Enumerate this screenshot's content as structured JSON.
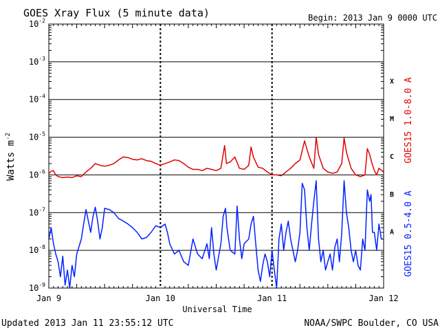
{
  "chart_data": {
    "type": "line",
    "title": "GOES Xray Flux (5 minute data)",
    "begin_label": "Begin:  2013 Jan 9 0000 UTC",
    "xlabel": "Universal Time",
    "ylabel": "Watts m",
    "ylabel_exponent": "-2",
    "yscale": "log",
    "ylim": [
      1e-09,
      0.01
    ],
    "xlim_hours": [
      0,
      72
    ],
    "y_ticks": [
      {
        "base": "10",
        "exp": "-2",
        "value": 0.01
      },
      {
        "base": "10",
        "exp": "-3",
        "value": 0.001
      },
      {
        "base": "10",
        "exp": "-4",
        "value": 0.0001
      },
      {
        "base": "10",
        "exp": "-5",
        "value": 1e-05
      },
      {
        "base": "10",
        "exp": "-6",
        "value": 1e-06
      },
      {
        "base": "10",
        "exp": "-7",
        "value": 1e-07
      },
      {
        "base": "10",
        "exp": "-8",
        "value": 1e-08
      },
      {
        "base": "10",
        "exp": "-9",
        "value": 1e-09
      }
    ],
    "x_ticks": [
      {
        "label": "Jan 9",
        "hour": 0
      },
      {
        "label": "Jan 10",
        "hour": 24
      },
      {
        "label": "Jan 11",
        "hour": 48
      },
      {
        "label": "Jan 12",
        "hour": 72
      }
    ],
    "flare_classes": [
      {
        "label": "X",
        "value": 0.000316
      },
      {
        "label": "M",
        "value": 3.16e-05
      },
      {
        "label": "C",
        "value": 3.16e-06
      },
      {
        "label": "B",
        "value": 3.16e-07
      },
      {
        "label": "A",
        "value": 3.16e-08
      }
    ],
    "series": [
      {
        "name": "GOES15 1.0-8.0 A",
        "color": "#e00000",
        "points": [
          [
            0,
            1.1e-06
          ],
          [
            0.5,
            1.25e-06
          ],
          [
            1,
            1.3e-06
          ],
          [
            1.5,
            1e-06
          ],
          [
            2,
            9e-07
          ],
          [
            3,
            8.5e-07
          ],
          [
            4,
            8.8e-07
          ],
          [
            5,
            8.5e-07
          ],
          [
            6,
            9.5e-07
          ],
          [
            7,
            9e-07
          ],
          [
            8,
            1.2e-06
          ],
          [
            9,
            1.5e-06
          ],
          [
            10,
            2e-06
          ],
          [
            11,
            1.8e-06
          ],
          [
            12,
            1.7e-06
          ],
          [
            13,
            1.8e-06
          ],
          [
            14,
            2e-06
          ],
          [
            15,
            2.5e-06
          ],
          [
            16,
            3e-06
          ],
          [
            17,
            2.9e-06
          ],
          [
            18,
            2.6e-06
          ],
          [
            19,
            2.5e-06
          ],
          [
            20,
            2.7e-06
          ],
          [
            21,
            2.4e-06
          ],
          [
            22,
            2.3e-06
          ],
          [
            23,
            2e-06
          ],
          [
            24,
            1.8e-06
          ],
          [
            25,
            2e-06
          ],
          [
            26,
            2.2e-06
          ],
          [
            27,
            2.5e-06
          ],
          [
            28,
            2.4e-06
          ],
          [
            29,
            2e-06
          ],
          [
            30,
            1.6e-06
          ],
          [
            31,
            1.4e-06
          ],
          [
            32,
            1.4e-06
          ],
          [
            33,
            1.3e-06
          ],
          [
            34,
            1.5e-06
          ],
          [
            35,
            1.4e-06
          ],
          [
            36,
            1.3e-06
          ],
          [
            37,
            1.5e-06
          ],
          [
            37.8,
            6e-06
          ],
          [
            38.2,
            2e-06
          ],
          [
            39,
            2.2e-06
          ],
          [
            40,
            3e-06
          ],
          [
            41,
            1.5e-06
          ],
          [
            42,
            1.4e-06
          ],
          [
            43,
            1.8e-06
          ],
          [
            43.5,
            5.5e-06
          ],
          [
            44,
            3e-06
          ],
          [
            45,
            1.6e-06
          ],
          [
            46,
            1.5e-06
          ],
          [
            47,
            1.2e-06
          ],
          [
            48,
            1e-06
          ],
          [
            49,
            1e-06
          ],
          [
            50,
            9.5e-07
          ],
          [
            51,
            1.2e-06
          ],
          [
            52,
            1.5e-06
          ],
          [
            53,
            2e-06
          ],
          [
            54,
            2.5e-06
          ],
          [
            55,
            8e-06
          ],
          [
            56,
            3e-06
          ],
          [
            57,
            1.5e-06
          ],
          [
            57.5,
            1e-05
          ],
          [
            58,
            3.5e-06
          ],
          [
            59,
            1.5e-06
          ],
          [
            60,
            1.2e-06
          ],
          [
            61,
            1.1e-06
          ],
          [
            62,
            1.2e-06
          ],
          [
            63,
            2e-06
          ],
          [
            63.5,
            9.5e-06
          ],
          [
            64,
            4e-06
          ],
          [
            65,
            1.5e-06
          ],
          [
            66,
            1e-06
          ],
          [
            67,
            9e-07
          ],
          [
            68,
            1e-06
          ],
          [
            68.5,
            5e-06
          ],
          [
            69,
            3.5e-06
          ],
          [
            69.5,
            2e-06
          ],
          [
            70,
            1.3e-06
          ],
          [
            70.5,
            1e-06
          ],
          [
            71,
            1.5e-06
          ],
          [
            72,
            1.2e-06
          ]
        ]
      },
      {
        "name": "GOES15 0.5-4.0 A",
        "color": "#0020ff",
        "points": [
          [
            0,
            2e-08
          ],
          [
            0.5,
            4e-08
          ],
          [
            1,
            1.5e-08
          ],
          [
            1.5,
            8e-09
          ],
          [
            2,
            5e-09
          ],
          [
            2.5,
            2e-09
          ],
          [
            3,
            7e-09
          ],
          [
            3.5,
            1.2e-09
          ],
          [
            4,
            3e-09
          ],
          [
            4.5,
            1e-09
          ],
          [
            5,
            4e-09
          ],
          [
            5.5,
            2e-09
          ],
          [
            6,
            8e-09
          ],
          [
            7,
            2e-08
          ],
          [
            7.5,
            5e-08
          ],
          [
            8,
            1.2e-07
          ],
          [
            8.5,
            6e-08
          ],
          [
            9,
            3e-08
          ],
          [
            9.5,
            8e-08
          ],
          [
            10,
            1.4e-07
          ],
          [
            10.5,
            6e-08
          ],
          [
            11,
            2e-08
          ],
          [
            11.5,
            4e-08
          ],
          [
            12,
            1.3e-07
          ],
          [
            13,
            1.2e-07
          ],
          [
            14,
            1e-07
          ],
          [
            15,
            7e-08
          ],
          [
            16,
            6e-08
          ],
          [
            17,
            5e-08
          ],
          [
            18,
            4e-08
          ],
          [
            19,
            3e-08
          ],
          [
            20,
            2e-08
          ],
          [
            21,
            2.2e-08
          ],
          [
            22,
            3e-08
          ],
          [
            23,
            4.5e-08
          ],
          [
            24,
            4e-08
          ],
          [
            25,
            5e-08
          ],
          [
            25.5,
            3e-08
          ],
          [
            26,
            1.5e-08
          ],
          [
            27,
            8e-09
          ],
          [
            28,
            1e-08
          ],
          [
            29,
            5e-09
          ],
          [
            30,
            4e-09
          ],
          [
            31,
            2e-08
          ],
          [
            32,
            8e-09
          ],
          [
            33,
            6e-09
          ],
          [
            34,
            1.5e-08
          ],
          [
            34.5,
            6e-09
          ],
          [
            35,
            4e-08
          ],
          [
            35.5,
            8e-09
          ],
          [
            36,
            3e-09
          ],
          [
            37,
            1.5e-08
          ],
          [
            37.5,
            8e-08
          ],
          [
            38,
            1.3e-07
          ],
          [
            38.3,
            4e-08
          ],
          [
            39,
            1e-08
          ],
          [
            40,
            8e-09
          ],
          [
            40.5,
            1.5e-07
          ],
          [
            41,
            2e-08
          ],
          [
            41.5,
            6e-09
          ],
          [
            42,
            1.5e-08
          ],
          [
            43,
            2e-08
          ],
          [
            43.5,
            5e-08
          ],
          [
            44,
            8e-08
          ],
          [
            44.5,
            1.5e-08
          ],
          [
            45,
            3e-09
          ],
          [
            45.5,
            1.5e-09
          ],
          [
            46,
            4e-09
          ],
          [
            46.5,
            8e-09
          ],
          [
            47,
            5e-09
          ],
          [
            47.5,
            2e-09
          ],
          [
            48,
            1e-08
          ],
          [
            48.5,
            3e-09
          ],
          [
            49,
            1e-09
          ],
          [
            49.5,
            2e-08
          ],
          [
            50,
            5e-08
          ],
          [
            50.5,
            1e-08
          ],
          [
            51,
            3e-08
          ],
          [
            51.5,
            6e-08
          ],
          [
            52,
            2e-08
          ],
          [
            52.5,
            1e-08
          ],
          [
            53,
            5e-09
          ],
          [
            53.5,
            1e-08
          ],
          [
            54,
            3e-08
          ],
          [
            54.5,
            6e-07
          ],
          [
            55,
            4e-07
          ],
          [
            55.5,
            4e-08
          ],
          [
            56,
            1e-08
          ],
          [
            56.5,
            5e-08
          ],
          [
            57,
            2e-07
          ],
          [
            57.5,
            7e-07
          ],
          [
            58,
            2e-08
          ],
          [
            58.5,
            5e-09
          ],
          [
            59,
            1e-08
          ],
          [
            59.5,
            3e-09
          ],
          [
            60,
            5e-09
          ],
          [
            60.5,
            8e-09
          ],
          [
            61,
            3e-09
          ],
          [
            61.5,
            1.2e-08
          ],
          [
            62,
            2e-08
          ],
          [
            62.5,
            5e-09
          ],
          [
            63,
            3e-08
          ],
          [
            63.5,
            7e-07
          ],
          [
            64,
            1e-07
          ],
          [
            64.5,
            4e-08
          ],
          [
            65,
            1e-08
          ],
          [
            65.5,
            5e-09
          ],
          [
            66,
            1e-08
          ],
          [
            66.5,
            4e-09
          ],
          [
            67,
            3e-09
          ],
          [
            67.5,
            2e-08
          ],
          [
            68,
            1e-08
          ],
          [
            68.5,
            4e-07
          ],
          [
            69,
            2e-07
          ],
          [
            69.3,
            3e-07
          ],
          [
            69.6,
            3e-08
          ],
          [
            70,
            3e-08
          ],
          [
            70.5,
            1e-08
          ],
          [
            71,
            5e-08
          ],
          [
            71.5,
            2e-08
          ],
          [
            72,
            2e-08
          ]
        ]
      }
    ]
  },
  "footer": {
    "updated": "Updated 2013 Jan 11 23:55:12 UTC",
    "credit": "NOAA/SWPC Boulder, CO USA"
  }
}
